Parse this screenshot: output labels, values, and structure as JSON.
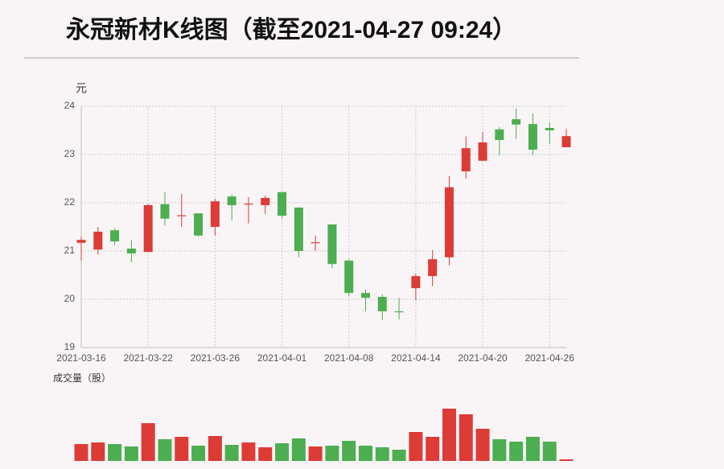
{
  "chart_data": {
    "type": "candlestick",
    "title": "永冠新材K线图（截至2021-04-27 09:24）",
    "y_unit": "元",
    "volume_label": "成交量（股）",
    "categories": [
      "2021-03-16",
      null,
      null,
      null,
      "2021-03-22",
      null,
      null,
      null,
      "2021-03-26",
      null,
      null,
      null,
      "2021-04-01",
      null,
      null,
      null,
      "2021-04-08",
      null,
      null,
      null,
      "2021-04-14",
      null,
      null,
      null,
      "2021-04-20",
      null,
      null,
      null,
      "2021-04-26",
      null
    ],
    "open": [
      21.17,
      21.03,
      21.43,
      21.05,
      20.98,
      21.97,
      21.72,
      21.78,
      21.5,
      22.13,
      21.96,
      21.95,
      22.22,
      21.9,
      21.16,
      21.55,
      20.8,
      20.13,
      20.05,
      19.75,
      20.23,
      20.48,
      20.87,
      22.65,
      22.87,
      23.52,
      23.73,
      23.63,
      23.55,
      23.15
    ],
    "high": [
      21.3,
      21.5,
      21.47,
      21.23,
      21.97,
      22.23,
      22.18,
      21.78,
      22.08,
      22.17,
      22.12,
      22.15,
      22.22,
      21.9,
      21.32,
      21.55,
      20.83,
      20.2,
      20.1,
      20.03,
      20.53,
      21.02,
      22.55,
      23.37,
      23.47,
      23.57,
      23.95,
      23.85,
      23.67,
      23.53
    ],
    "low": [
      20.8,
      20.93,
      21.13,
      20.77,
      20.98,
      21.53,
      21.5,
      21.3,
      21.32,
      21.63,
      21.57,
      21.77,
      21.67,
      20.87,
      21.0,
      20.65,
      20.07,
      19.75,
      19.57,
      19.58,
      19.98,
      20.27,
      20.7,
      22.5,
      22.87,
      22.98,
      23.32,
      22.98,
      23.22,
      23.15
    ],
    "close": [
      21.23,
      21.4,
      21.2,
      20.95,
      21.95,
      21.67,
      21.74,
      21.32,
      22.03,
      21.95,
      21.98,
      22.1,
      21.73,
      21.0,
      21.18,
      20.73,
      20.13,
      20.03,
      19.75,
      19.73,
      20.48,
      20.83,
      22.32,
      23.13,
      23.25,
      23.3,
      23.62,
      23.1,
      23.5,
      23.38
    ],
    "volume": [
      21,
      23,
      21,
      18,
      47,
      27,
      30,
      19,
      31,
      20,
      23,
      17,
      22,
      28,
      18,
      19,
      25,
      19,
      17,
      14,
      36,
      30,
      65,
      58,
      40,
      27,
      24,
      30,
      24,
      2
    ],
    "up_color": "#dd3b36",
    "down_color": "#4cae50",
    "ylim": [
      19,
      24
    ],
    "yticks": [
      19,
      20,
      21,
      22,
      23,
      24
    ],
    "grid": true
  }
}
